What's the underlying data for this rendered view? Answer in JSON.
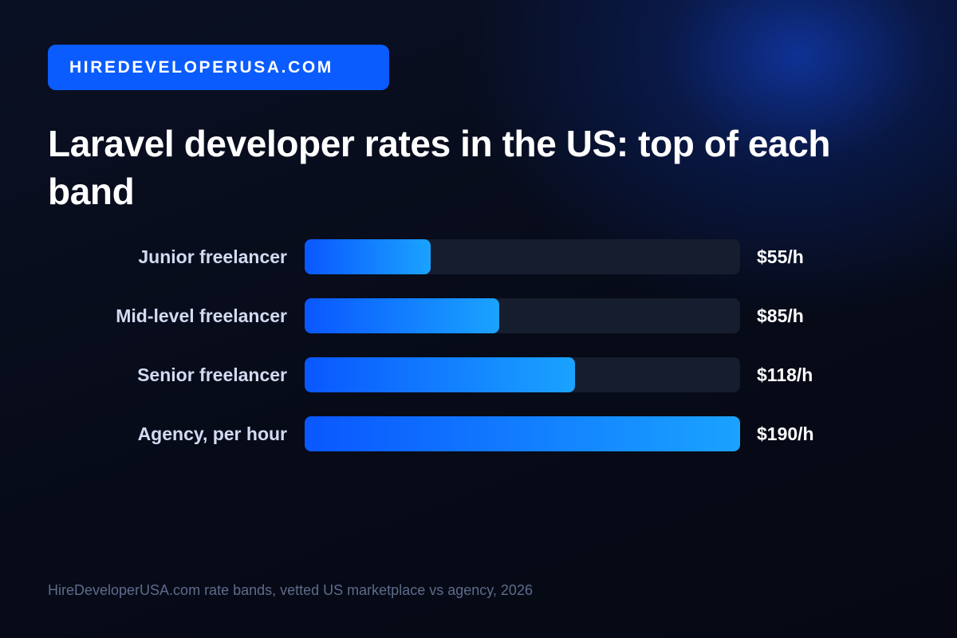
{
  "brand": {
    "label": "HIREDEVELOPERUSA.COM"
  },
  "title": "Laravel developer rates in the US: top of each band",
  "chart_data": {
    "type": "bar",
    "orientation": "horizontal",
    "categories": [
      "Junior freelancer",
      "Mid-level freelancer",
      "Senior freelancer",
      "Agency, per hour"
    ],
    "values": [
      55,
      85,
      118,
      190
    ],
    "value_labels": [
      "$55/h",
      "$85/h",
      "$118/h",
      "$190/h"
    ],
    "title": "Laravel developer rates in the US: top of each band",
    "xlim": [
      0,
      190
    ],
    "grid": false,
    "legend": "none"
  },
  "source": "HireDeveloperUSA.com rate bands, vetted US marketplace vs agency, 2026",
  "colors": {
    "brand_badge": "#0a5cff",
    "bar_gradient_start": "#0a57ff",
    "bar_gradient_end": "#1aa3ff",
    "track": "#161d2e",
    "background": "#070b17"
  }
}
